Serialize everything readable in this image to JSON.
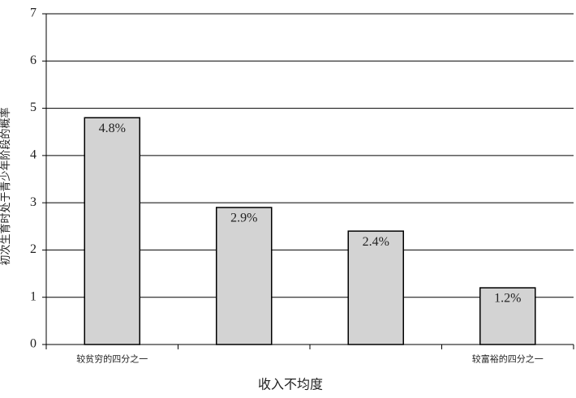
{
  "chart_data": {
    "type": "bar",
    "y_label": "初次生育时处于青少年阶段的概率",
    "x_label": "收入不均度",
    "categories": [
      "较贫穷的四分之一",
      null,
      null,
      "较富裕的四分之一"
    ],
    "values": [
      4.8,
      2.9,
      2.4,
      1.2
    ],
    "value_labels": [
      "4.8%",
      "2.9%",
      "2.4%",
      "1.2%"
    ],
    "color": "#d3d3d3",
    "ylim": [
      0,
      7
    ],
    "yticks": [
      0,
      1,
      2,
      3,
      4,
      5,
      6,
      7
    ],
    "grid": true
  }
}
